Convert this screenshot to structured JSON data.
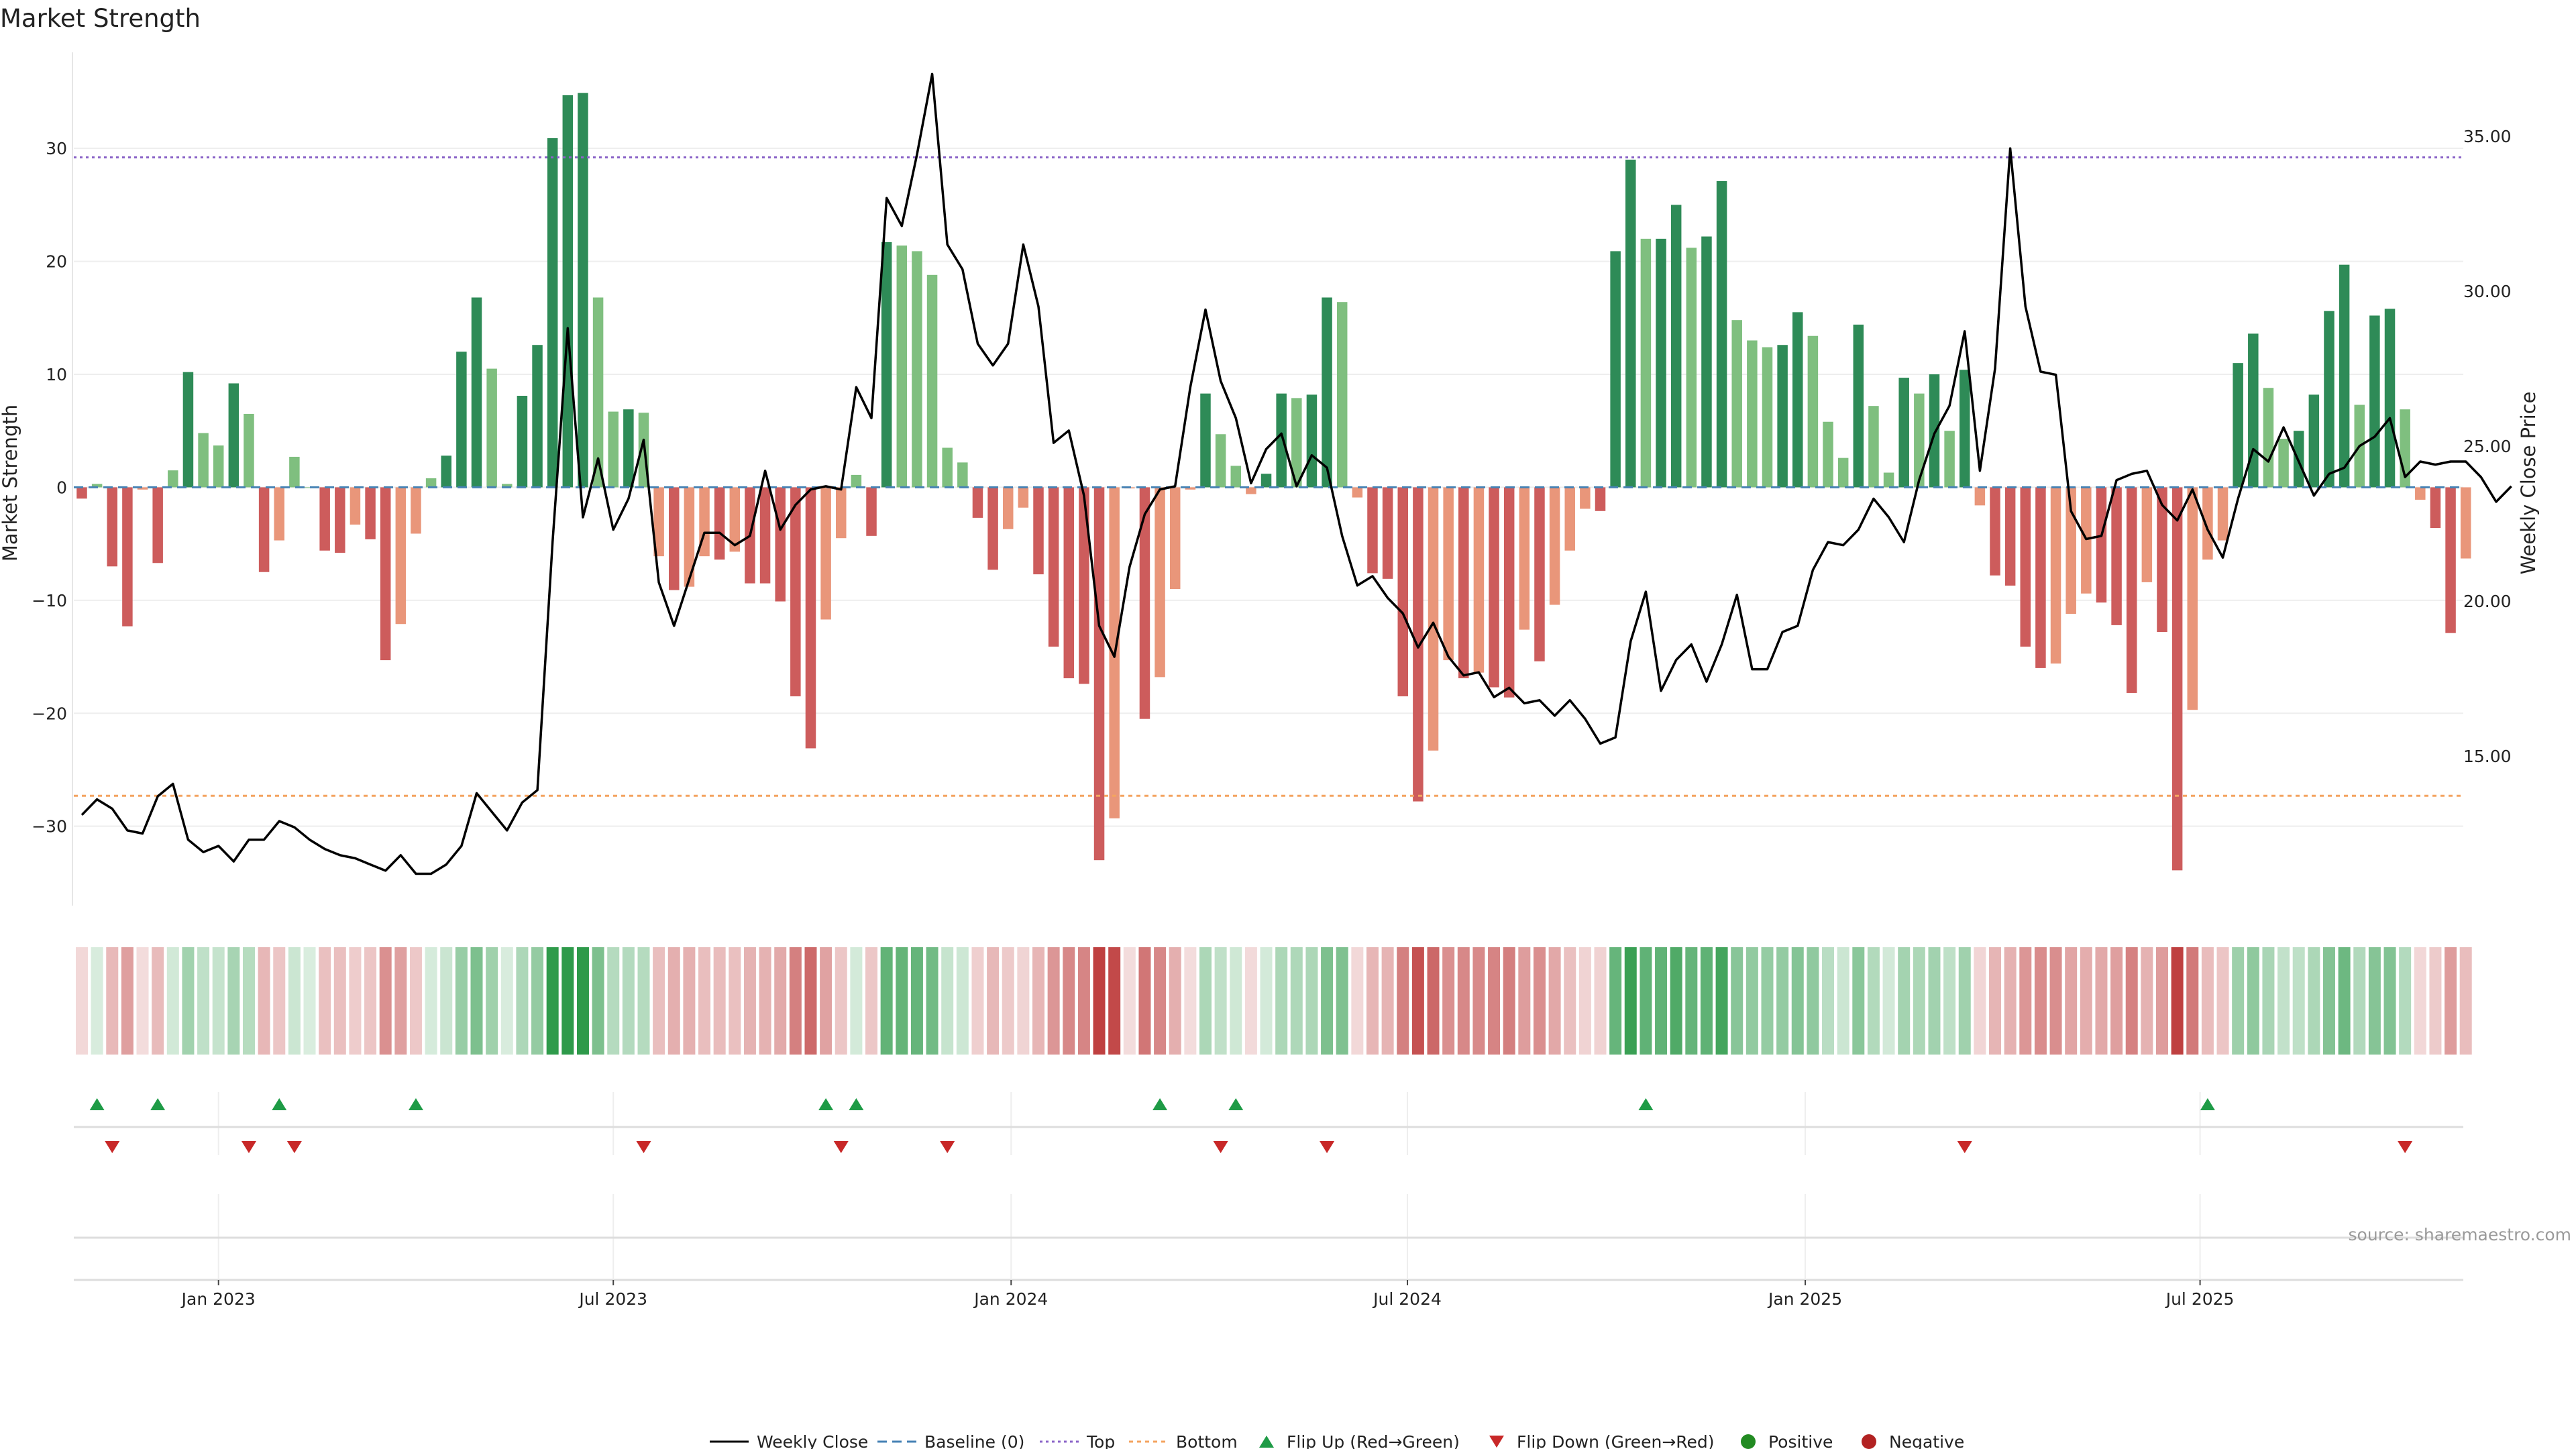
{
  "chart_data": {
    "type": "bar",
    "title": "Market Strength",
    "ylabel": "Market Strength",
    "y2label": "Weekly Close Price",
    "ylim": [
      -37.5,
      38.5
    ],
    "y2lim": [
      10.0,
      37.7
    ],
    "yticks": [
      -30,
      -20,
      -10,
      0,
      10,
      20,
      30
    ],
    "y2ticks": [
      "15.00",
      "20.00",
      "25.00",
      "30.00",
      "35.00"
    ],
    "top_line": 29.2,
    "bottom_line": -27.3,
    "baseline": 0,
    "x_ticks": [
      {
        "label": "Jan 2023",
        "week": 9
      },
      {
        "label": "Jul 2023",
        "week": 35
      },
      {
        "label": "Jan 2024",
        "week": 61.2
      },
      {
        "label": "Jul 2024",
        "week": 87.3
      },
      {
        "label": "Jan 2025",
        "week": 113.5
      },
      {
        "label": "Jul 2025",
        "week": 139.5
      }
    ],
    "strength": [
      -1,
      0.3,
      -7,
      -12.3,
      -0.2,
      -6.7,
      1.5,
      10.2,
      4.8,
      3.7,
      9.2,
      6.5,
      -7.5,
      -4.7,
      2.7,
      0,
      -5.6,
      -5.8,
      -3.3,
      -4.6,
      -15.3,
      -12.1,
      -4.1,
      0.8,
      2.8,
      12,
      16.8,
      10.5,
      0.3,
      8.1,
      12.6,
      30.9,
      34.7,
      34.9,
      16.8,
      6.7,
      6.9,
      6.6,
      -6.1,
      -9.1,
      -8.8,
      -6.1,
      -6.4,
      -5.7,
      -8.5,
      -8.5,
      -10.1,
      -18.5,
      -23.1,
      -11.7,
      -4.5,
      1.1,
      -4.3,
      21.7,
      21.4,
      20.9,
      18.8,
      3.5,
      2.2,
      -2.7,
      -7.3,
      -3.7,
      -1.8,
      -7.7,
      -14.1,
      -16.9,
      -17.4,
      -33,
      -29.3,
      -0.1,
      -20.5,
      -16.8,
      -9,
      -0.2,
      8.3,
      4.7,
      1.9,
      -0.6,
      1.2,
      8.3,
      7.9,
      8.2,
      16.8,
      16.4,
      -0.9,
      -7.6,
      -8.1,
      -18.5,
      -27.8,
      -23.3,
      -15.3,
      -16.9,
      -16.4,
      -17.7,
      -18.6,
      -12.6,
      -15.4,
      -10.4,
      -5.6,
      -1.9,
      -2.1,
      20.9,
      29,
      22,
      22,
      25,
      21.2,
      22.2,
      27.1,
      14.8,
      13,
      12.4,
      12.6,
      15.5,
      13.4,
      5.8,
      2.6,
      14.4,
      7.2,
      1.3,
      9.7,
      8.3,
      10,
      5,
      10.4,
      -1.6,
      -7.8,
      -8.7,
      -14.1,
      -16,
      -15.6,
      -11.2,
      -9.4,
      -10.2,
      -12.2,
      -18.2,
      -8.4,
      -12.8,
      -33.9,
      -19.7,
      -6.4,
      -4.7,
      11,
      13.6,
      8.8,
      4.3,
      5,
      8.2,
      15.6,
      19.7,
      7.3,
      15.2,
      15.8,
      6.9,
      -1.1,
      -3.6,
      -12.9,
      -6.3
    ],
    "weekly_close": [
      13.1,
      13.6,
      13.3,
      12.6,
      12.5,
      13.7,
      14.1,
      12.3,
      11.9,
      12.1,
      11.6,
      12.3,
      12.3,
      12.9,
      12.7,
      12.3,
      12,
      11.8,
      11.7,
      11.5,
      11.3,
      11.8,
      11.2,
      11.2,
      11.5,
      12.1,
      13.8,
      13.2,
      12.6,
      13.5,
      13.9,
      21.9,
      28.8,
      22.7,
      24.6,
      22.3,
      23.3,
      25.2,
      20.6,
      19.2,
      20.7,
      22.2,
      22.2,
      21.8,
      22.1,
      24.2,
      22.3,
      23.1,
      23.6,
      23.7,
      23.6,
      26.9,
      25.9,
      33,
      32.1,
      34.4,
      37,
      31.5,
      30.7,
      28.3,
      27.6,
      28.3,
      31.5,
      29.5,
      25.1,
      25.5,
      23.4,
      19.2,
      18.2,
      21.1,
      22.8,
      23.6,
      23.7,
      26.9,
      29.4,
      27.1,
      25.9,
      23.8,
      24.9,
      25.4,
      23.7,
      24.7,
      24.3,
      22.1,
      20.5,
      20.8,
      20.1,
      19.6,
      18.5,
      19.3,
      18.2,
      17.6,
      17.7,
      16.9,
      17.2,
      16.7,
      16.8,
      16.3,
      16.8,
      16.2,
      15.4,
      15.6,
      18.7,
      20.3,
      17.1,
      18.1,
      18.6,
      17.4,
      18.6,
      20.2,
      17.8,
      17.8,
      19,
      19.2,
      21,
      21.9,
      21.8,
      22.3,
      23.3,
      22.7,
      21.9,
      23.9,
      25.4,
      26.3,
      28.7,
      24.2,
      27.5,
      34.6,
      29.5,
      27.4,
      27.3,
      22.9,
      22,
      22.1,
      23.9,
      24.1,
      24.2,
      23.1,
      22.6,
      23.6,
      22.3,
      21.4,
      23.3,
      24.9,
      24.5,
      25.6,
      24.5,
      23.4,
      24.1,
      24.3,
      25,
      25.3,
      25.9,
      24,
      24.5,
      24.4,
      24.5,
      24.5,
      24,
      23.2,
      23.7
    ],
    "flip_up_weeks": [
      1,
      5,
      13,
      22,
      49,
      51,
      71,
      76,
      103,
      140
    ],
    "flip_down_weeks": [
      2,
      11,
      14,
      37,
      50,
      57,
      75,
      82,
      124,
      153
    ],
    "legend": [
      "Weekly Close",
      "Baseline (0)",
      "Top",
      "Bottom",
      "Flip Up (Red→Green)",
      "Flip Down (Green→Red)",
      "Positive",
      "Negative"
    ],
    "legend_placement": "bottom-center",
    "grid": true,
    "source": "source: sharemaestro.com",
    "colors": {
      "strong_positive": "#2e8b57",
      "weak_positive": "#7fbf7f",
      "strong_negative": "#cd5c5c",
      "weak_negative": "#e9967a",
      "price_line": "#000000",
      "top_line": "#8b64c8",
      "bottom_line": "#f4a460",
      "baseline": "#4682b4",
      "flip_up": "#1e9b46",
      "flip_down": "#c82828",
      "positive_dot": "#228b22",
      "negative_dot": "#b22222"
    }
  }
}
